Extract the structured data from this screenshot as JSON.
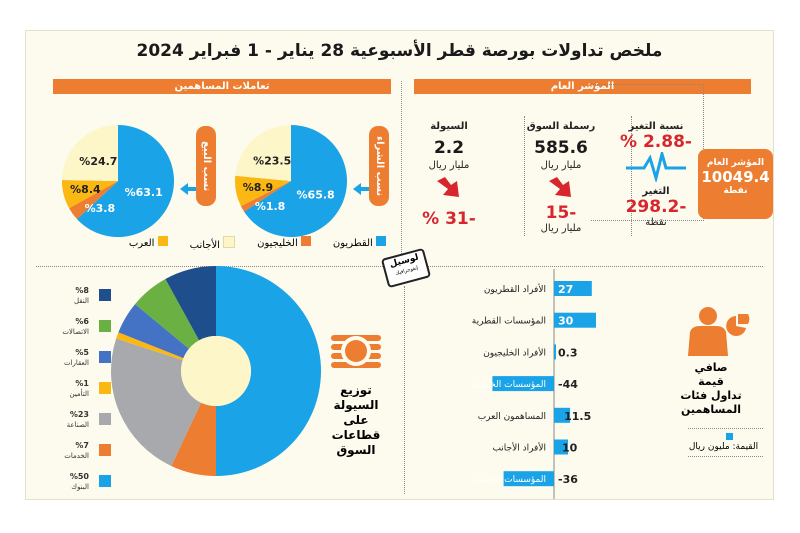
{
  "title": "ملخص تداولات بورصة قطر الأسبوعية 28 يناير - 1 فبراير 2024",
  "headers": {
    "investors": "تعاملات المساهمين",
    "index": "المؤشر العام"
  },
  "index_box": {
    "label": "المؤشر العام",
    "value": "10049.4",
    "unit": "نقطة"
  },
  "change": {
    "pct_label": "نسبة التغير",
    "pct_value": "% 2.88-",
    "abs_label": "التغير",
    "abs_value": "298.2-",
    "abs_unit": "نقطة"
  },
  "market_cap": {
    "label": "رسملة السوق",
    "value": "585.6",
    "unit": "مليار ريال",
    "change": "15-",
    "change_unit": "مليار ريال"
  },
  "liquidity": {
    "label": "السيولة",
    "value": "2.2",
    "unit": "مليار ريال",
    "change": "% 31-"
  },
  "pills": {
    "buy": "نسب الشراء",
    "sell": "نسب البيع"
  },
  "logo": {
    "text": "لوسيل",
    "sub": "إنفوجرافيك"
  },
  "colors": {
    "accent": "#ec7d31",
    "qatari": "#1aa3e6",
    "gulf": "#ec7d31",
    "foreign": "#fdf6c9",
    "arab": "#fbb813",
    "down": "#d8262e"
  },
  "investor_legend": [
    "القطريون",
    "الخليجيون",
    "الأجانب",
    "العرب"
  ],
  "sectors_title": [
    "توزيع",
    "السيولة",
    "على قطاعات",
    "السوق"
  ],
  "net_title": [
    "صافي",
    "قيمة",
    "تداول فئات",
    "المساهمين"
  ],
  "net_unit_label": "القيمة: مليون ريال",
  "chart_data": [
    {
      "type": "pie",
      "title": "نسب الشراء",
      "categories": [
        "القطريون",
        "الخليجيون",
        "العرب",
        "الأجانب"
      ],
      "values": [
        65.8,
        1.8,
        8.9,
        23.5
      ],
      "labels": [
        "%65.8",
        "%1.8",
        "%8.9",
        "%23.5"
      ]
    },
    {
      "type": "pie",
      "title": "نسب البيع",
      "categories": [
        "القطريون",
        "الخليجيون",
        "العرب",
        "الأجانب"
      ],
      "values": [
        63.1,
        3.8,
        8.4,
        24.7
      ],
      "labels": [
        "%63.1",
        "%3.8",
        "%8.4",
        "%24.7"
      ]
    },
    {
      "type": "pie",
      "donut": true,
      "categories": [
        "البنوك",
        "الخدمات",
        "الصناعة",
        "التأمين",
        "العقارات",
        "الاتصالات",
        "النقل"
      ],
      "values": [
        50,
        7,
        23,
        1,
        5,
        6,
        8
      ],
      "labels": [
        "%50",
        "%7",
        "%23",
        "%1",
        "%5",
        "%6",
        "%8"
      ],
      "colors": [
        "#1aa3e6",
        "#ec7d31",
        "#a7a9ac",
        "#fbb813",
        "#4472c4",
        "#6ab043",
        "#1f4e8c"
      ]
    },
    {
      "type": "bar",
      "orientation": "horizontal",
      "categories": [
        "الأفراد القطريون",
        "المؤسسات القطرية",
        "الأفراد الخليجيون",
        "المؤسسات الخليجية",
        "المساهمون العرب",
        "الأفراد الأجانب",
        "المؤسسات الأجنبية"
      ],
      "values": [
        27,
        30,
        0.3,
        -44,
        11.5,
        10,
        -36
      ],
      "labels": [
        "27",
        "30",
        "0.3",
        "-44",
        "11.5",
        "10",
        "-36"
      ],
      "unit": "مليون ريال"
    }
  ]
}
